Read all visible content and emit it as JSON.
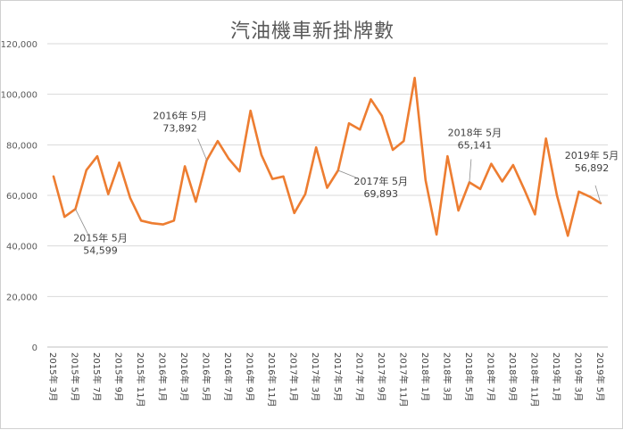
{
  "chart_data": {
    "type": "line",
    "title": "汽油機車新掛牌數",
    "xlabel": "",
    "ylabel": "",
    "ylim": [
      0,
      120000
    ],
    "y_ticks": [
      "0",
      "20,000",
      "40,000",
      "60,000",
      "80,000",
      "100,000",
      "120,000"
    ],
    "y_tick_values": [
      0,
      20000,
      40000,
      60000,
      80000,
      100000,
      120000
    ],
    "grid": true,
    "legend": "none",
    "series_color": "#ED7D31",
    "x": [
      "2015年 3月",
      "2015年 4月",
      "2015年 5月",
      "2015年 6月",
      "2015年 7月",
      "2015年 8月",
      "2015年 9月",
      "2015年 10月",
      "2015年 11月",
      "2015年 12月",
      "2016年 1月",
      "2016年 2月",
      "2016年 3月",
      "2016年 4月",
      "2016年 5月",
      "2016年 6月",
      "2016年 7月",
      "2016年 8月",
      "2016年 9月",
      "2016年 10月",
      "2016年 11月",
      "2016年 12月",
      "2017年 1月",
      "2017年 2月",
      "2017年 3月",
      "2017年 4月",
      "2017年 5月",
      "2017年 6月",
      "2017年 7月",
      "2017年 8月",
      "2017年 9月",
      "2017年 10月",
      "2017年 11月",
      "2017年 12月",
      "2018年 1月",
      "2018年 2月",
      "2018年 3月",
      "2018年 4月",
      "2018年 5月",
      "2018年 6月",
      "2018年 7月",
      "2018年 8月",
      "2018年 9月",
      "2018年 10月",
      "2018年 11月",
      "2018年 12月",
      "2019年 1月",
      "2019年 2月",
      "2019年 3月",
      "2019年 4月",
      "2019年 5月"
    ],
    "x_tick_labels": [
      "2015年 3月",
      "2015年 5月",
      "2015年 7月",
      "2015年 9月",
      "2015年 11月",
      "2016年 1月",
      "2016年 3月",
      "2016年 5月",
      "2016年 7月",
      "2016年 9月",
      "2016年 11月",
      "2017年 1月",
      "2017年 3月",
      "2017年 5月",
      "2017年 7月",
      "2017年 9月",
      "2017年 11月",
      "2018年 1月",
      "2018年 3月",
      "2018年 5月",
      "2018年 7月",
      "2018年 9月",
      "2018年 11月",
      "2019年 1月",
      "2019年 3月",
      "2019年 5月"
    ],
    "values": [
      67500,
      51500,
      54599,
      70000,
      75500,
      60500,
      73000,
      59000,
      50000,
      49000,
      48500,
      50000,
      71500,
      57500,
      73892,
      81500,
      74500,
      69500,
      93500,
      76000,
      66500,
      67500,
      53000,
      60500,
      79000,
      63000,
      69893,
      88500,
      86000,
      98000,
      91500,
      78000,
      81500,
      106500,
      66000,
      44500,
      75500,
      54000,
      65141,
      62500,
      72500,
      65500,
      72000,
      62500,
      52500,
      82500,
      60000,
      44000,
      61500,
      59500,
      56892
    ],
    "annotations": [
      {
        "index": 2,
        "line1": "2015年 5月",
        "line2": "54,599"
      },
      {
        "index": 14,
        "line1": "2016年 5月",
        "line2": "73,892"
      },
      {
        "index": 26,
        "line1": "2017年 5月",
        "line2": "69,893"
      },
      {
        "index": 38,
        "line1": "2018年 5月",
        "line2": "65,141"
      },
      {
        "index": 50,
        "line1": "2019年 5月",
        "line2": "56,892"
      }
    ]
  }
}
